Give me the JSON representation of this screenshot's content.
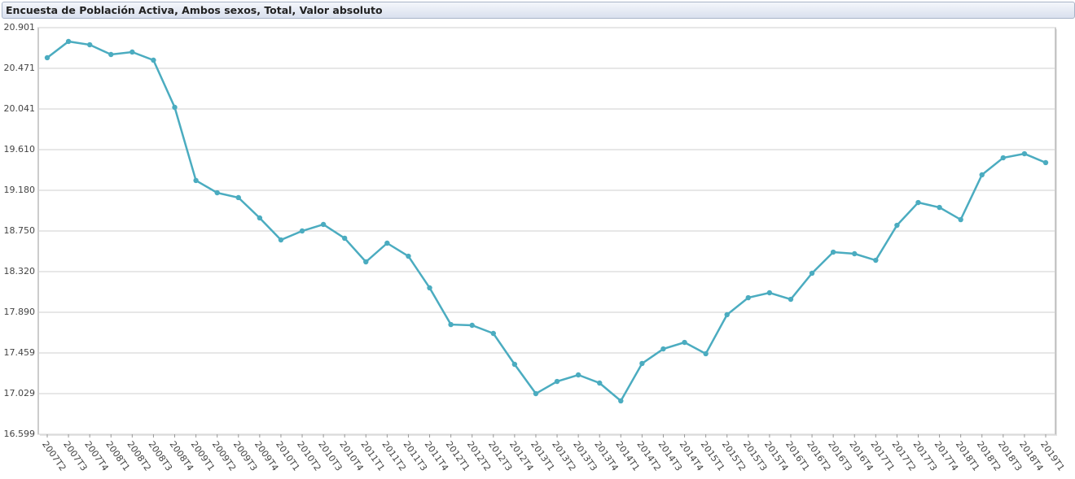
{
  "chart_data": {
    "type": "line",
    "title": "Encuesta de Población Activa, Ambos sexos, Total, Valor absoluto",
    "categories": [
      "2007T2",
      "2007T3",
      "2007T4",
      "2008T1",
      "2008T2",
      "2008T3",
      "2008T4",
      "2009T1",
      "2009T2",
      "2009T3",
      "2009T4",
      "2010T1",
      "2010T2",
      "2010T3",
      "2010T4",
      "2011T1",
      "2011T2",
      "2011T3",
      "2011T4",
      "2012T1",
      "2012T2",
      "2012T3",
      "2012T4",
      "2013T1",
      "2013T2",
      "2013T3",
      "2013T4",
      "2014T1",
      "2014T2",
      "2014T3",
      "2014T4",
      "2015T1",
      "2015T2",
      "2015T3",
      "2015T4",
      "2016T1",
      "2016T2",
      "2016T3",
      "2016T4",
      "2017T1",
      "2017T2",
      "2017T3",
      "2017T4",
      "2018T1",
      "2018T2",
      "2018T3",
      "2018T4",
      "2019T1"
    ],
    "values": [
      20583,
      20755,
      20720,
      20617,
      20643,
      20557,
      20058,
      19284,
      19154,
      19103,
      18888,
      18655,
      18750,
      18819,
      18673,
      18423,
      18621,
      18483,
      18148,
      17760,
      17752,
      17666,
      17339,
      17029,
      17158,
      17227,
      17141,
      16952,
      17348,
      17502,
      17571,
      17451,
      17864,
      18044,
      18096,
      18027,
      18303,
      18526,
      18509,
      18440,
      18810,
      19051,
      18999,
      18870,
      19344,
      19524,
      19567,
      19473
    ],
    "color": "#4bacc0",
    "ylim": [
      16599,
      20901
    ],
    "yticks": [
      {
        "value": 16599,
        "label": "16.599"
      },
      {
        "value": 17029,
        "label": "17.029"
      },
      {
        "value": 17459,
        "label": "17.459"
      },
      {
        "value": 17890,
        "label": "17.890"
      },
      {
        "value": 18320,
        "label": "18.320"
      },
      {
        "value": 18750,
        "label": "18.750"
      },
      {
        "value": 19180,
        "label": "19.180"
      },
      {
        "value": 19610,
        "label": "19.610"
      },
      {
        "value": 20041,
        "label": "20.041"
      },
      {
        "value": 20471,
        "label": "20.471"
      },
      {
        "value": 20901,
        "label": "20.901"
      }
    ],
    "grid": true
  }
}
